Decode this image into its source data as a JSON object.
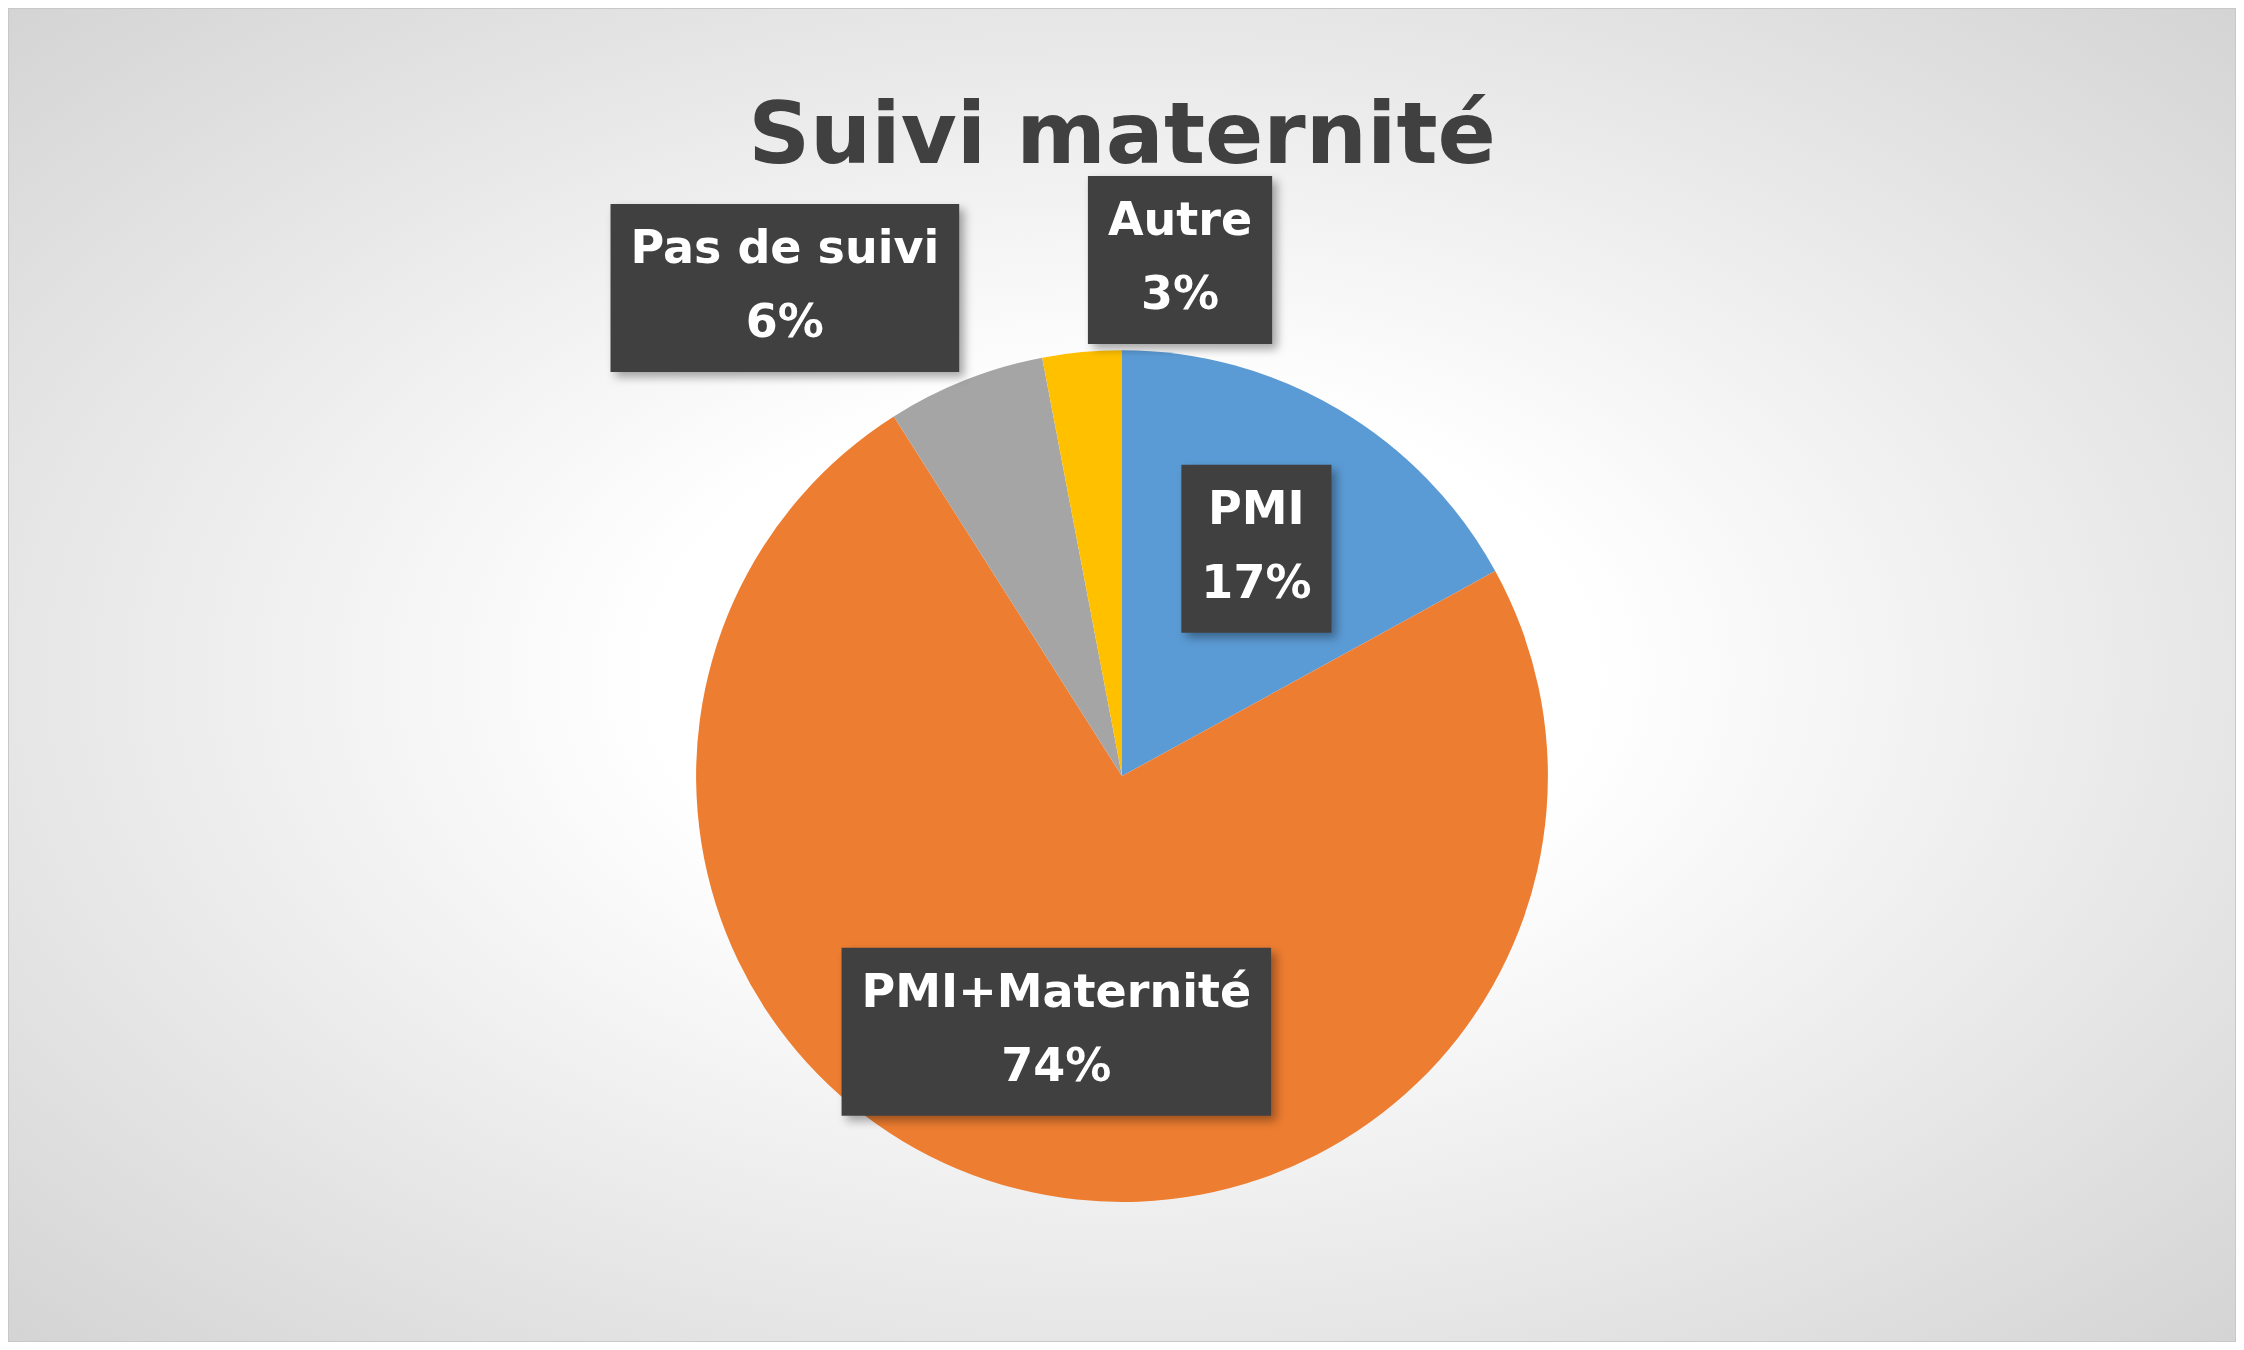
{
  "chart_data": {
    "type": "pie",
    "title": "Suivi maternité",
    "categories": [
      "PMI",
      "PMI+Maternité",
      "Pas de suivi",
      "Autre"
    ],
    "values": [
      17,
      74,
      6,
      3
    ],
    "value_labels": [
      "17%",
      "74%",
      "6%",
      "3%"
    ],
    "colors": [
      "#5b9bd5",
      "#ed7d31",
      "#a5a5a5",
      "#ffc000"
    ],
    "legend": false
  }
}
